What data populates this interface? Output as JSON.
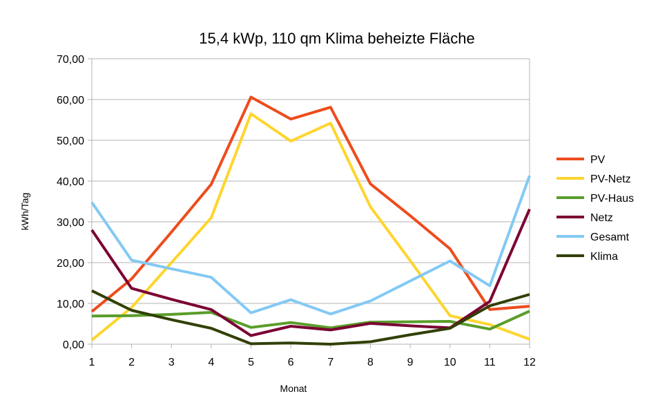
{
  "chart_data": {
    "type": "line",
    "title": "15,4 kWp, 110 qm Klima beheizte Fläche",
    "xlabel": "Monat",
    "ylabel": "kWh/Tag",
    "x": [
      1,
      2,
      3,
      4,
      5,
      6,
      7,
      8,
      9,
      10,
      11,
      12
    ],
    "x_tick_labels": [
      "1",
      "2",
      "3",
      "4",
      "5",
      "6",
      "7",
      "8",
      "9",
      "10",
      "11",
      "12"
    ],
    "ylim": [
      0,
      70
    ],
    "y_ticks": [
      0,
      10,
      20,
      30,
      40,
      50,
      60,
      70
    ],
    "y_tick_labels": [
      "0,00",
      "10,00",
      "20,00",
      "30,00",
      "40,00",
      "50,00",
      "60,00",
      "70,00"
    ],
    "grid": "horizontal",
    "legend_position": "right",
    "series": [
      {
        "name": "PV",
        "color": "#ee4c1d",
        "values": [
          8.0,
          16.0,
          27.5,
          39.2,
          60.6,
          55.2,
          58.1,
          39.3,
          31.5,
          23.4,
          8.5,
          9.3
        ]
      },
      {
        "name": "PV-Netz",
        "color": "#fed52e",
        "values": [
          1.0,
          9.0,
          20.0,
          31.0,
          56.5,
          49.8,
          54.2,
          33.7,
          20.5,
          7.0,
          4.8,
          1.2
        ]
      },
      {
        "name": "PV-Haus",
        "color": "#5a9d2a",
        "values": [
          6.9,
          7.0,
          7.3,
          7.8,
          4.1,
          5.3,
          4.0,
          5.4,
          5.5,
          5.6,
          3.7,
          8.1
        ]
      },
      {
        "name": "Netz",
        "color": "#7b0033",
        "values": [
          28.0,
          13.7,
          11.0,
          8.5,
          2.1,
          4.4,
          3.5,
          5.1,
          4.5,
          4.0,
          10.5,
          33.1
        ]
      },
      {
        "name": "Gesamt",
        "color": "#83c9f4",
        "values": [
          34.8,
          20.6,
          18.5,
          16.4,
          7.7,
          10.9,
          7.4,
          10.6,
          15.5,
          20.4,
          14.3,
          41.3
        ]
      },
      {
        "name": "Klima",
        "color": "#314004",
        "values": [
          13.1,
          8.3,
          6.0,
          3.9,
          0.1,
          0.3,
          0.0,
          0.6,
          2.3,
          3.9,
          9.4,
          12.2
        ]
      }
    ]
  }
}
